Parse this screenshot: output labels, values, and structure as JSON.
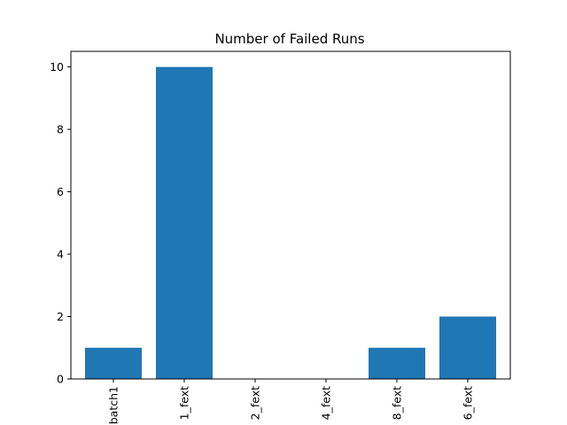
{
  "chart_data": {
    "type": "bar",
    "title": "Number of Failed Runs",
    "xlabel": "",
    "ylabel": "",
    "categories": [
      "batch1",
      "1_fext",
      "2_fext",
      "4_fext",
      "8_fext",
      "6_fext"
    ],
    "category_display": [
      "batch1",
      "1_fext",
      "2_fext",
      "4_fext",
      "8_fext",
      "6_fext"
    ],
    "values": [
      1,
      10,
      0,
      0,
      1,
      2
    ],
    "ylim": [
      0,
      10.5
    ],
    "yticks": [
      0,
      2,
      4,
      6,
      8,
      10
    ],
    "grid": false,
    "bar_color": "#1f77b4"
  }
}
